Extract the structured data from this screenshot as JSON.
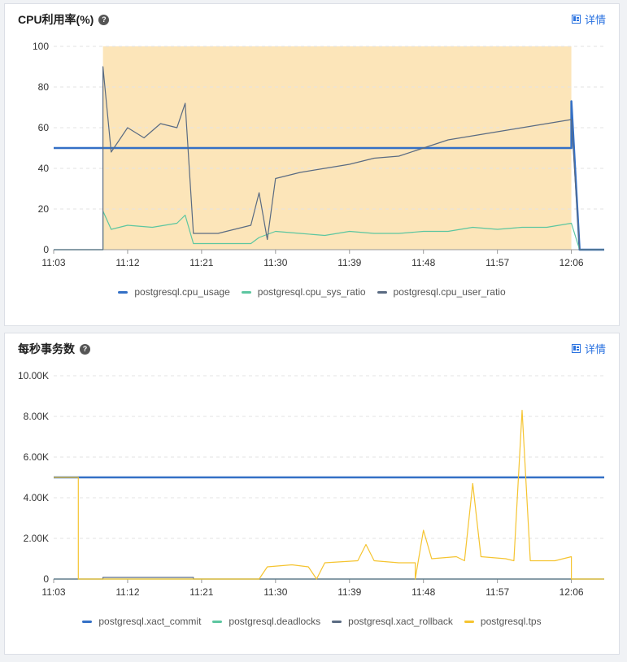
{
  "panels": [
    {
      "title": "CPU利用率(%)",
      "detail_label": "详情",
      "help_glyph": "?"
    },
    {
      "title": "每秒事务数",
      "detail_label": "详情",
      "help_glyph": "?"
    }
  ],
  "chart_data": [
    {
      "type": "line",
      "title": "CPU利用率(%)",
      "x_ticks": [
        "11:03",
        "11:12",
        "11:21",
        "11:30",
        "11:39",
        "11:48",
        "11:57",
        "12:06"
      ],
      "y_ticks": [
        "0",
        "20",
        "40",
        "60",
        "80",
        "100"
      ],
      "ylim": [
        0,
        100
      ],
      "xlim": [
        "11:03",
        "12:10"
      ],
      "grid": true,
      "legend_position": "bottom",
      "highlight_band": {
        "x_start": "11:09",
        "x_end": "12:06",
        "y_start": 0,
        "y_end": 100,
        "color": "#fce5b9"
      },
      "series": [
        {
          "name": "postgresql.cpu_usage",
          "color": "#3470c6",
          "points": [
            [
              "11:03",
              50
            ],
            [
              "11:09",
              50
            ],
            [
              "11:21",
              50
            ],
            [
              "11:39",
              50
            ],
            [
              "11:57",
              50
            ],
            [
              "12:06",
              50
            ],
            [
              "12:06",
              73
            ],
            [
              "12:07",
              0
            ],
            [
              "12:10",
              0
            ]
          ]
        },
        {
          "name": "postgresql.cpu_sys_ratio",
          "color": "#5cc6a0",
          "points": [
            [
              "11:03",
              0
            ],
            [
              "11:09",
              0
            ],
            [
              "11:09",
              19
            ],
            [
              "11:10",
              10
            ],
            [
              "11:12",
              12
            ],
            [
              "11:15",
              11
            ],
            [
              "11:18",
              13
            ],
            [
              "11:19",
              17
            ],
            [
              "11:20",
              3
            ],
            [
              "11:24",
              3
            ],
            [
              "11:27",
              3
            ],
            [
              "11:28",
              6
            ],
            [
              "11:30",
              9
            ],
            [
              "11:33",
              8
            ],
            [
              "11:36",
              7
            ],
            [
              "11:39",
              9
            ],
            [
              "11:42",
              8
            ],
            [
              "11:45",
              8
            ],
            [
              "11:48",
              9
            ],
            [
              "11:51",
              9
            ],
            [
              "11:54",
              11
            ],
            [
              "11:57",
              10
            ],
            [
              "12:00",
              11
            ],
            [
              "12:03",
              11
            ],
            [
              "12:06",
              13
            ],
            [
              "12:07",
              0
            ],
            [
              "12:10",
              0
            ]
          ]
        },
        {
          "name": "postgresql.cpu_user_ratio",
          "color": "#5a6b82",
          "points": [
            [
              "11:03",
              0
            ],
            [
              "11:09",
              0
            ],
            [
              "11:09",
              90
            ],
            [
              "11:10",
              48
            ],
            [
              "11:12",
              60
            ],
            [
              "11:14",
              55
            ],
            [
              "11:16",
              62
            ],
            [
              "11:18",
              60
            ],
            [
              "11:19",
              72
            ],
            [
              "11:20",
              8
            ],
            [
              "11:23",
              8
            ],
            [
              "11:25",
              10
            ],
            [
              "11:27",
              12
            ],
            [
              "11:28",
              28
            ],
            [
              "11:29",
              5
            ],
            [
              "11:30",
              35
            ],
            [
              "11:33",
              38
            ],
            [
              "11:36",
              40
            ],
            [
              "11:39",
              42
            ],
            [
              "11:42",
              45
            ],
            [
              "11:45",
              46
            ],
            [
              "11:48",
              50
            ],
            [
              "11:51",
              54
            ],
            [
              "11:54",
              56
            ],
            [
              "11:57",
              58
            ],
            [
              "12:00",
              60
            ],
            [
              "12:03",
              62
            ],
            [
              "12:06",
              64
            ],
            [
              "12:07",
              0
            ],
            [
              "12:10",
              0
            ]
          ]
        }
      ]
    },
    {
      "type": "line",
      "title": "每秒事务数",
      "x_ticks": [
        "11:03",
        "11:12",
        "11:21",
        "11:30",
        "11:39",
        "11:48",
        "11:57",
        "12:06"
      ],
      "y_ticks": [
        "0",
        "2.00K",
        "4.00K",
        "6.00K",
        "8.00K",
        "10.00K"
      ],
      "ylim": [
        0,
        10000
      ],
      "xlim": [
        "11:03",
        "12:10"
      ],
      "grid": true,
      "legend_position": "bottom",
      "series": [
        {
          "name": "postgresql.xact_commit",
          "color": "#3470c6",
          "points": [
            [
              "11:03",
              5000
            ],
            [
              "11:09",
              5000
            ],
            [
              "11:21",
              5000
            ],
            [
              "11:39",
              5000
            ],
            [
              "11:57",
              5000
            ],
            [
              "12:10",
              5000
            ]
          ]
        },
        {
          "name": "postgresql.deadlocks",
          "color": "#5cc6a0",
          "points": [
            [
              "11:03",
              0
            ],
            [
              "12:10",
              0
            ]
          ]
        },
        {
          "name": "postgresql.xact_rollback",
          "color": "#5a6b82",
          "points": [
            [
              "11:03",
              0
            ],
            [
              "11:09",
              0
            ],
            [
              "11:09",
              80
            ],
            [
              "11:20",
              80
            ],
            [
              "11:20",
              0
            ],
            [
              "12:10",
              0
            ]
          ]
        },
        {
          "name": "postgresql.tps",
          "color": "#f5c430",
          "points": [
            [
              "11:03",
              5000
            ],
            [
              "11:06",
              5000
            ],
            [
              "11:06",
              0
            ],
            [
              "11:28",
              0
            ],
            [
              "11:29",
              600
            ],
            [
              "11:32",
              700
            ],
            [
              "11:34",
              600
            ],
            [
              "11:35",
              0
            ],
            [
              "11:36",
              800
            ],
            [
              "11:40",
              900
            ],
            [
              "11:41",
              1700
            ],
            [
              "11:42",
              900
            ],
            [
              "11:45",
              800
            ],
            [
              "11:47",
              800
            ],
            [
              "11:47",
              0
            ],
            [
              "11:48",
              2400
            ],
            [
              "11:49",
              1000
            ],
            [
              "11:52",
              1100
            ],
            [
              "11:53",
              900
            ],
            [
              "11:54",
              4700
            ],
            [
              "11:55",
              1100
            ],
            [
              "11:58",
              1000
            ],
            [
              "11:59",
              900
            ],
            [
              "12:00",
              8300
            ],
            [
              "12:01",
              900
            ],
            [
              "12:04",
              900
            ],
            [
              "12:06",
              1100
            ],
            [
              "12:06",
              0
            ],
            [
              "12:10",
              0
            ]
          ]
        }
      ]
    }
  ]
}
